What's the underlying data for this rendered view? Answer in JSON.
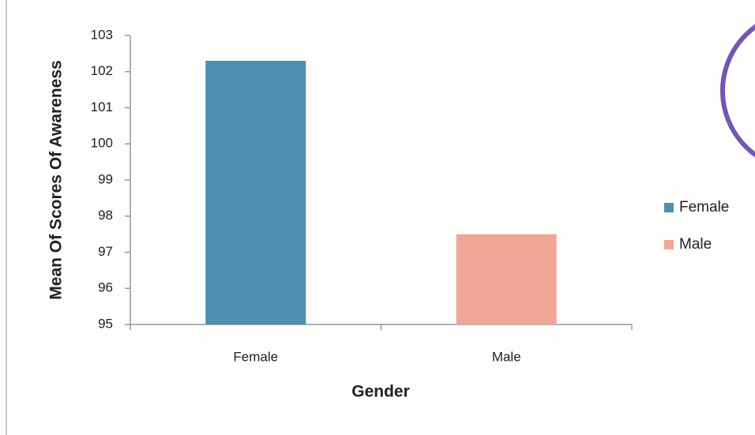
{
  "chart_data": {
    "type": "bar",
    "x_label": "Gender",
    "y_label": "Mean Of Scores Of Awareness",
    "categories": [
      "Female",
      "Male"
    ],
    "values": [
      102.3,
      97.5
    ],
    "colors": [
      "#4f8eae",
      "#f0a796"
    ],
    "ylim": [
      95,
      103
    ],
    "yticks": [
      95,
      96,
      97,
      98,
      99,
      100,
      101,
      102,
      103
    ],
    "legend": "right",
    "grid": false
  }
}
